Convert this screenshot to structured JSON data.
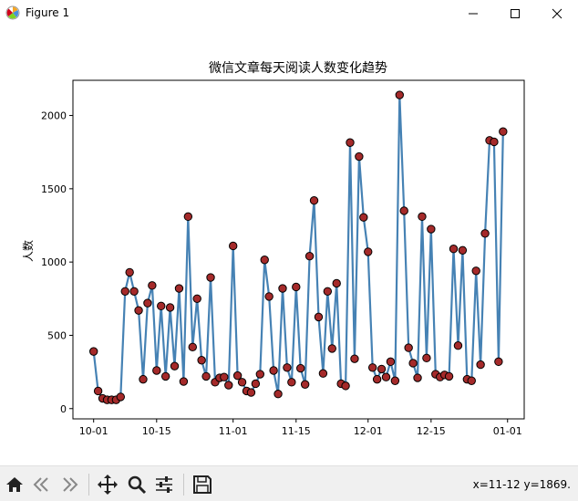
{
  "window": {
    "title": "Figure 1"
  },
  "chart_data": {
    "type": "line",
    "title": "微信文章每天阅读人数变化趋势",
    "xlabel": "",
    "ylabel": "人数",
    "x_start": "10-01",
    "x_ticks": [
      {
        "label": "10-01",
        "date": "10-01"
      },
      {
        "label": "10-15",
        "date": "10-15"
      },
      {
        "label": "11-01",
        "date": "11-01"
      },
      {
        "label": "11-15",
        "date": "11-15"
      },
      {
        "label": "12-01",
        "date": "12-01"
      },
      {
        "label": "12-15",
        "date": "12-15"
      },
      {
        "label": "01-01",
        "date": "01-01"
      }
    ],
    "y_ticks": [
      0,
      500,
      1000,
      1500,
      2000
    ],
    "ylim": [
      -70,
      2240
    ],
    "grid": false,
    "line_color": "#4682b4",
    "marker_color": "#a52a2a",
    "series": [
      {
        "dates": [
          "10-01",
          "10-02",
          "10-03",
          "10-04",
          "10-05",
          "10-06",
          "10-07",
          "10-08",
          "10-09",
          "10-10",
          "10-11",
          "10-12",
          "10-13",
          "10-14",
          "10-15",
          "10-16",
          "10-17",
          "10-18",
          "10-19",
          "10-20",
          "10-21",
          "10-22",
          "10-23",
          "10-24",
          "10-25",
          "10-26",
          "10-27",
          "10-28",
          "10-29",
          "10-30",
          "10-31",
          "11-01",
          "11-02",
          "11-03",
          "11-04",
          "11-05",
          "11-06",
          "11-07",
          "11-08",
          "11-09",
          "11-10",
          "11-11",
          "11-12",
          "11-13",
          "11-14",
          "11-15",
          "11-16",
          "11-17",
          "11-18",
          "11-19",
          "11-20",
          "11-21",
          "11-22",
          "11-23",
          "11-24",
          "11-25",
          "11-26",
          "11-27",
          "11-28",
          "11-29",
          "11-30",
          "12-01",
          "12-02",
          "12-03",
          "12-04",
          "12-05",
          "12-06",
          "12-07",
          "12-08",
          "12-09",
          "12-10",
          "12-11",
          "12-12",
          "12-13",
          "12-14",
          "12-15",
          "12-16",
          "12-17",
          "12-18",
          "12-19",
          "12-20",
          "12-21",
          "12-22",
          "12-23",
          "12-24",
          "12-25",
          "12-26",
          "12-27",
          "12-28",
          "12-29",
          "12-30",
          "12-31"
        ],
        "values": [
          390,
          120,
          70,
          60,
          60,
          60,
          80,
          800,
          930,
          800,
          670,
          200,
          720,
          840,
          260,
          700,
          220,
          690,
          290,
          820,
          185,
          1310,
          420,
          750,
          330,
          220,
          895,
          180,
          210,
          215,
          160,
          1110,
          225,
          180,
          120,
          110,
          170,
          235,
          1015,
          765,
          260,
          100,
          820,
          280,
          180,
          830,
          275,
          165,
          1040,
          1420,
          625,
          240,
          800,
          410,
          855,
          170,
          155,
          1815,
          340,
          1720,
          1305,
          1070,
          280,
          200,
          270,
          215,
          320,
          190,
          2140,
          1350,
          415,
          310,
          210,
          1310,
          345,
          1225,
          235,
          215,
          230,
          220,
          1090,
          430,
          1080,
          200,
          190,
          940,
          300,
          1195,
          1830,
          1820,
          320,
          1890
        ]
      }
    ]
  },
  "toolbar": {
    "coords_text": "x=11-12 y=1869."
  }
}
